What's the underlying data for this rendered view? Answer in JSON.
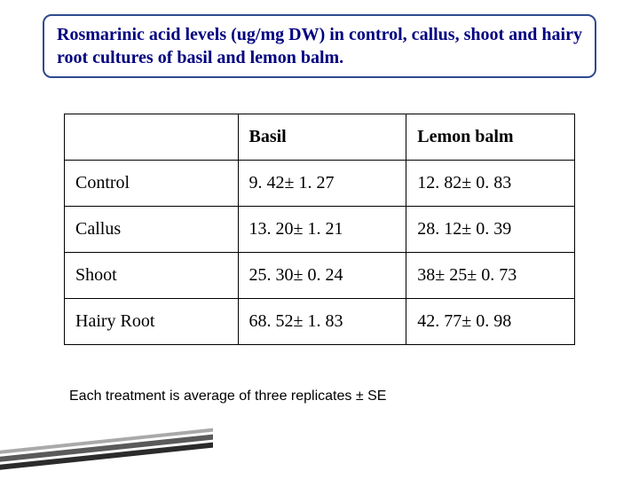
{
  "title": "Rosmarinic acid levels (ug/mg DW) in control, callus, shoot and hairy root cultures of basil and lemon balm.",
  "table": {
    "columns": [
      "",
      "Basil",
      "Lemon balm"
    ],
    "rows": [
      {
        "label": "Control",
        "basil": "9. 42± 1. 27",
        "lemon": "12. 82± 0. 83"
      },
      {
        "label": "Callus",
        "basil": "13. 20± 1. 21",
        "lemon": "28. 12± 0. 39"
      },
      {
        "label": "Shoot",
        "basil": "25. 30± 0. 24",
        "lemon": "38± 25± 0. 73"
      },
      {
        "label": "Hairy Root",
        "basil": "68. 52± 1. 83",
        "lemon": "42. 77± 0. 98"
      }
    ]
  },
  "footnote": "Each treatment is average of three replicates ± SE",
  "styling": {
    "title_border_color": "#2d4b8e",
    "title_text_color": "#000080",
    "title_fontsize": 20,
    "table_border_color": "#000000",
    "table_fontsize": 20,
    "footnote_fontsize": 16,
    "background_color": "#ffffff",
    "stripe_colors": [
      "#a9a9a9",
      "#5a5a5a",
      "#2b2b2b"
    ]
  }
}
